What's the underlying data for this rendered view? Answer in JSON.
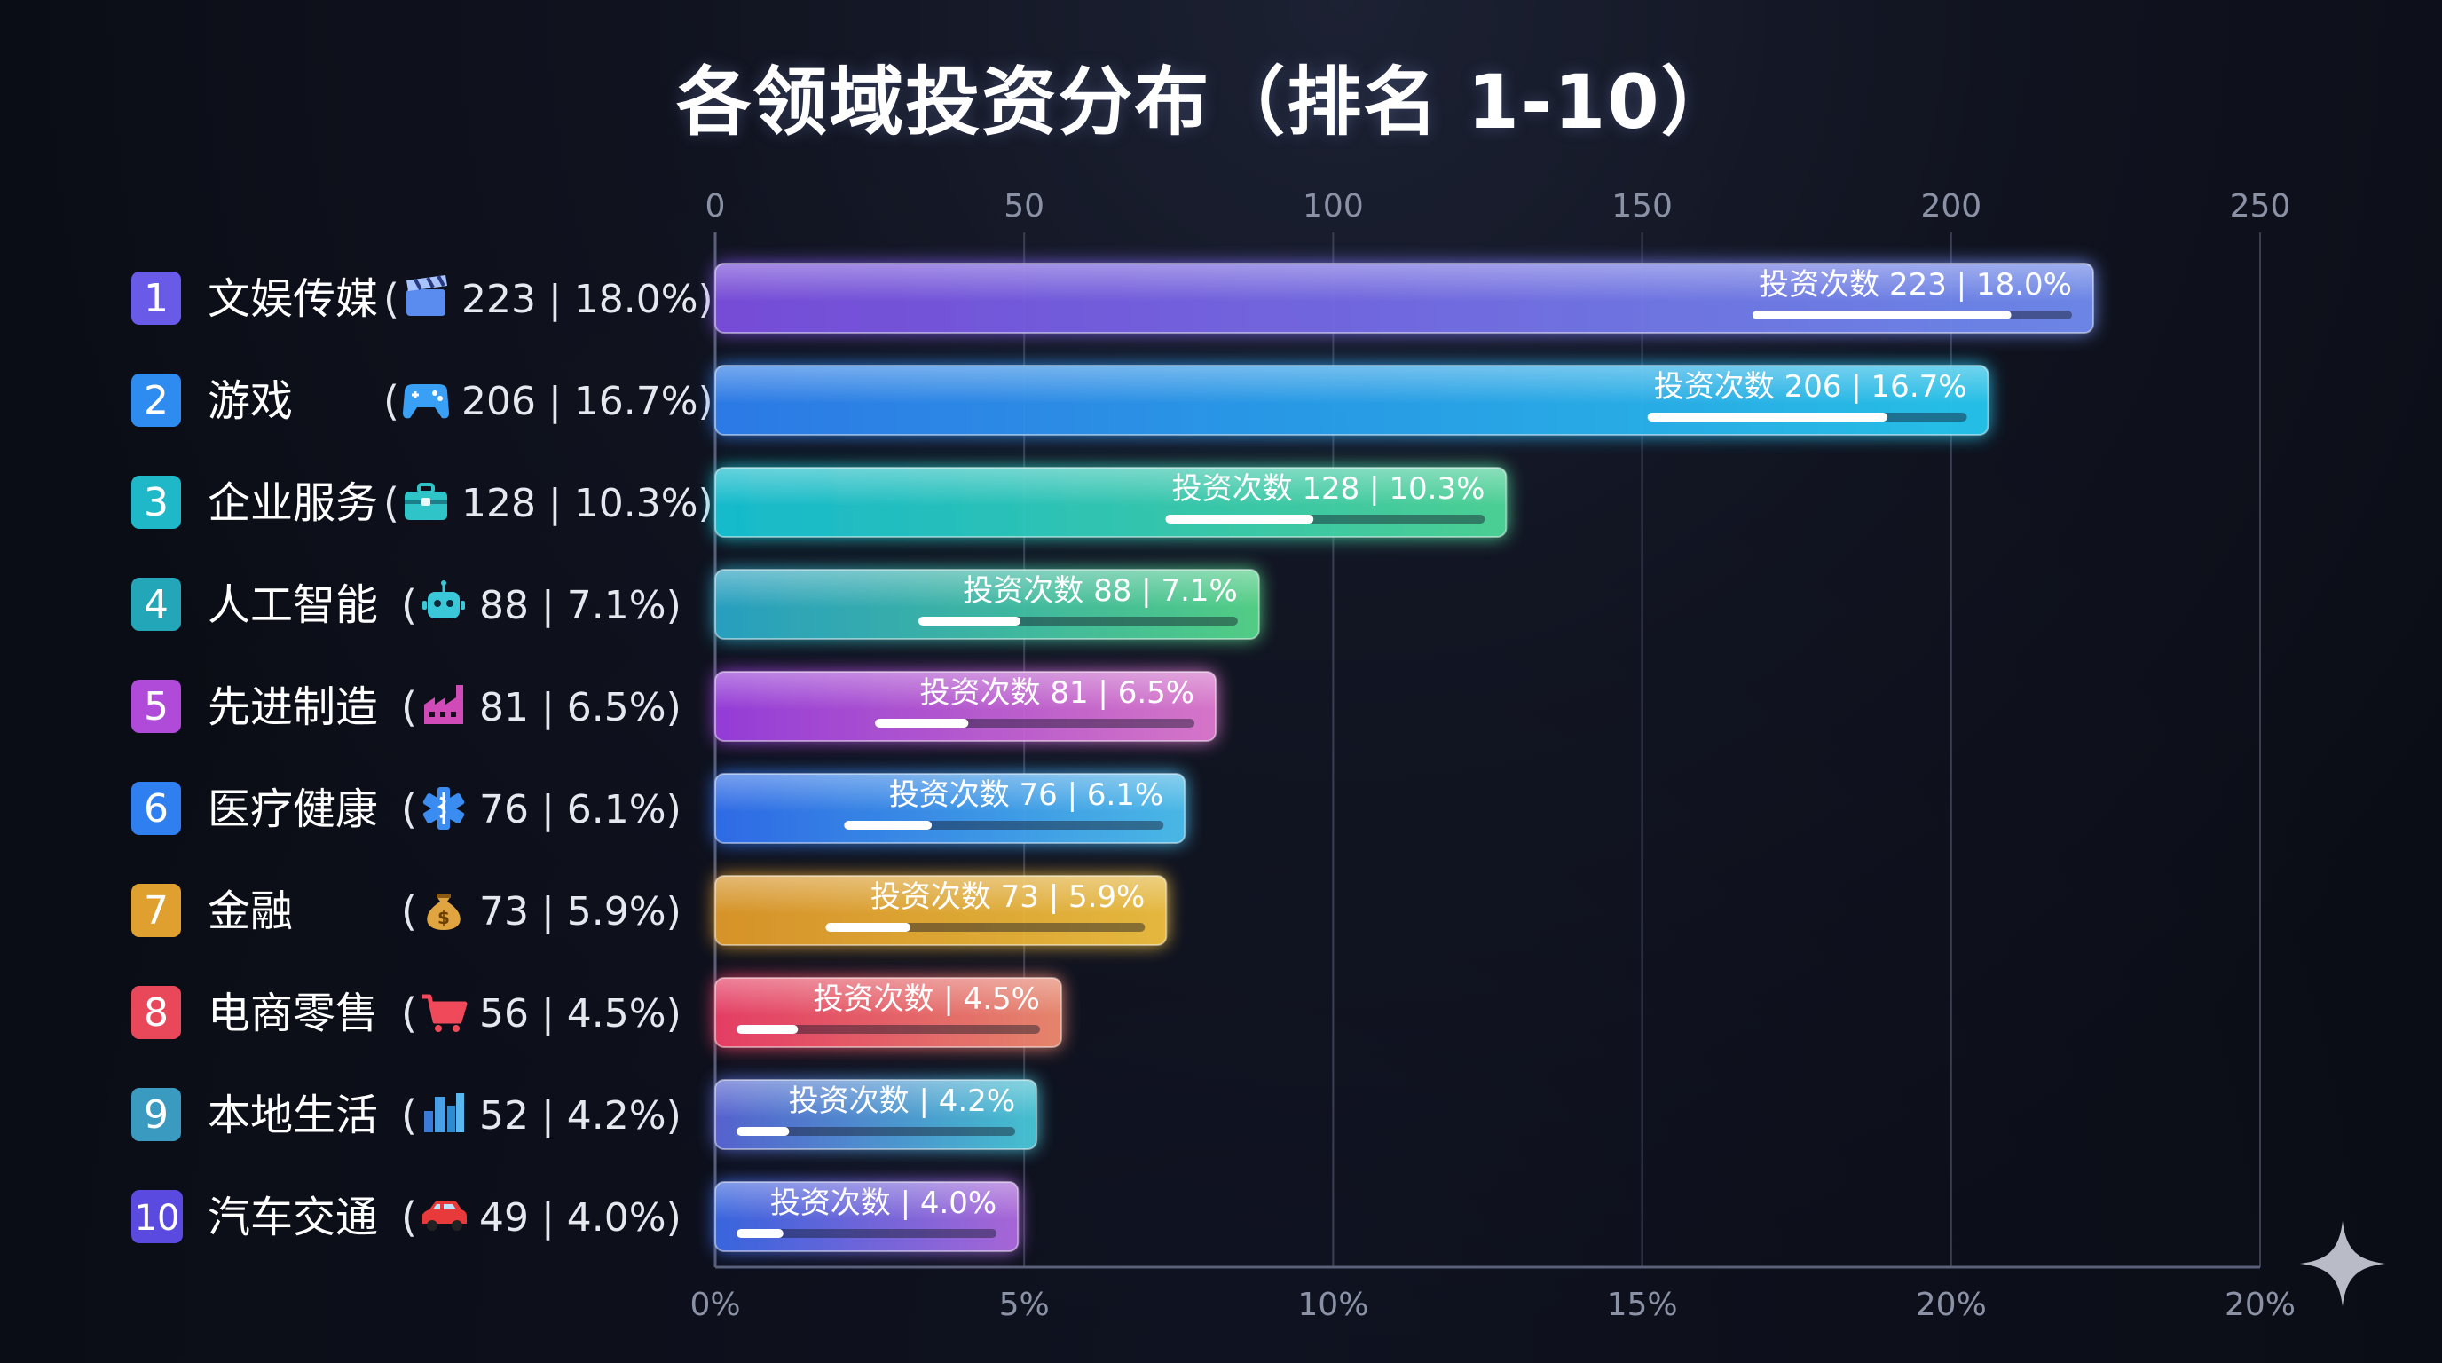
{
  "chart_data": {
    "type": "bar",
    "orientation": "horizontal",
    "title": "各领域投资分布（排名 1-10）",
    "x_axis_top": {
      "range": [
        0,
        250
      ],
      "ticks": [
        "0",
        "50",
        "100",
        "150",
        "200",
        "250"
      ]
    },
    "x_axis_bottom": {
      "ticks": [
        "0%",
        "5%",
        "10%",
        "15%",
        "20%",
        "20%"
      ]
    },
    "bar_label_prefix": "投资次数",
    "series": [
      {
        "rank": "1",
        "name": "文娱传媒",
        "icon": "clapperboard-icon",
        "value": 223,
        "percent": "18.0%",
        "row_label": "223 | 18.0%)",
        "bar_label": "投资次数 223 | 18.0%",
        "color_start": "#7b4fe0",
        "color_end": "#6f8cf0",
        "badge_color": "#6a5ae8"
      },
      {
        "rank": "2",
        "name": "游戏",
        "icon": "gamepad-icon",
        "value": 206,
        "percent": "16.7%",
        "row_label": "206 | 16.7%)",
        "bar_label": "投资次数 206 | 16.7%",
        "color_start": "#2f7ff0",
        "color_end": "#28c8f0",
        "badge_color": "#2e8bf0"
      },
      {
        "rank": "3",
        "name": "企业服务",
        "icon": "briefcase-icon",
        "value": 128,
        "percent": "10.3%",
        "row_label": "128 | 10.3%)",
        "bar_label": "投资次数 128 | 10.3%",
        "color_start": "#17c3d6",
        "color_end": "#4fd89a",
        "badge_color": "#1fb8c8"
      },
      {
        "rank": "4",
        "name": "人工智能",
        "icon": "robot-icon",
        "value": 88,
        "percent": "7.1%",
        "row_label": "88 | 7.1%)",
        "bar_label": "投资次数 88 | 7.1%",
        "color_start": "#2aa6c8",
        "color_end": "#55d68a",
        "badge_color": "#23a7b8"
      },
      {
        "rank": "5",
        "name": "先进制造",
        "icon": "factory-icon",
        "value": 81,
        "percent": "6.5%",
        "row_label": "81 | 6.5%)",
        "bar_label": "投资次数 81 | 6.5%",
        "color_start": "#9b3fe0",
        "color_end": "#e07ad0",
        "badge_color": "#b04ad8"
      },
      {
        "rank": "6",
        "name": "医疗健康",
        "icon": "medical-star-icon",
        "value": 76,
        "percent": "6.1%",
        "row_label": "76 | 6.1%)",
        "bar_label": "投资次数 76 | 6.1%",
        "color_start": "#2f6ff0",
        "color_end": "#4cc0f0",
        "badge_color": "#2f7ff0"
      },
      {
        "rank": "7",
        "name": "金融",
        "icon": "money-bag-icon",
        "value": 73,
        "percent": "5.9%",
        "row_label": "73 | 5.9%)",
        "bar_label": "投资次数 73 | 5.9%",
        "color_start": "#e09a2a",
        "color_end": "#f0c040",
        "badge_color": "#e0a030"
      },
      {
        "rank": "8",
        "name": "电商零售",
        "icon": "shopping-cart-icon",
        "value": 56,
        "percent": "4.5%",
        "row_label": "56 | 4.5%)",
        "bar_label": "投资次数 | 4.5%",
        "color_start": "#f04068",
        "color_end": "#f08a70",
        "badge_color": "#e8485a"
      },
      {
        "rank": "9",
        "name": "本地生活",
        "icon": "city-icon",
        "value": 52,
        "percent": "4.2%",
        "row_label": "52 | 4.2%)",
        "bar_label": "投资次数 | 4.2%",
        "color_start": "#5a66d8",
        "color_end": "#48c8d8",
        "badge_color": "#3a9ac0"
      },
      {
        "rank": "10",
        "name": "汽车交通",
        "icon": "car-icon",
        "value": 49,
        "percent": "4.0%",
        "row_label": "49 | 4.0%)",
        "bar_label": "投资次数 | 4.0%",
        "color_start": "#3a6ae8",
        "color_end": "#b06ae0",
        "badge_color": "#5a4ae0"
      }
    ]
  },
  "decorations": {
    "corner_icon": "sparkle-icon"
  }
}
